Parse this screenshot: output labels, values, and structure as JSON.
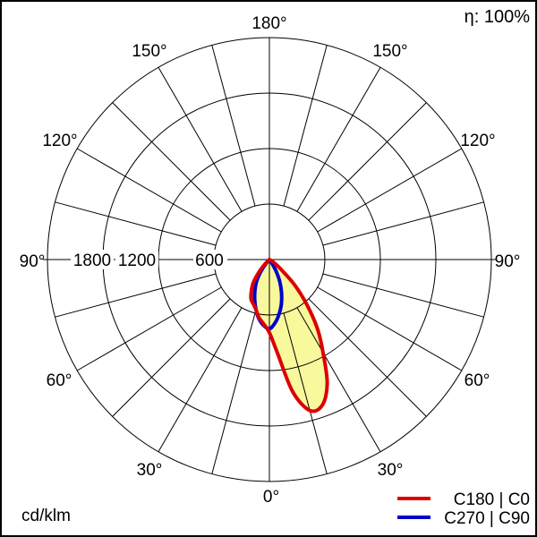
{
  "efficiency": "η: 100%",
  "unit": "cd/klm",
  "legend": {
    "items": [
      {
        "label": "C180 | C0",
        "color": "#dd0000"
      },
      {
        "label": "C270 | C90",
        "color": "#0000cc"
      }
    ]
  },
  "axis": {
    "radial_labels": [
      "1800",
      "1200",
      "600"
    ],
    "angle_labels": [
      "180°",
      "150°",
      "120°",
      "90°",
      "60°",
      "30°",
      "0°"
    ]
  },
  "colors": {
    "curve_c0_c180": "#dd0000",
    "curve_c90_c270": "#0000cc",
    "beam_fill": "#f8f89c",
    "grid": "#000000"
  },
  "chart_data": {
    "type": "polar_intensity",
    "title": "Luminous intensity distribution curve",
    "unit": "cd/klm",
    "efficiency_percent": 100,
    "radial_ticks": [
      600,
      1200,
      1800
    ],
    "radial_max": 2400,
    "angle_tick_labels_deg": [
      0,
      30,
      60,
      90,
      120,
      150,
      180
    ],
    "angle_grid_step_deg": 15,
    "grid": true,
    "legend_position": "bottom-right",
    "series": [
      {
        "name": "C180 | C0",
        "left_plane": "C180",
        "right_plane": "C0",
        "color": "#dd0000",
        "fill": "#f8f89c",
        "gamma_deg": [
          0,
          5,
          10,
          15,
          20,
          25,
          30,
          35,
          40,
          45,
          50,
          55,
          60,
          65
        ],
        "right_values_cd_per_klm": [
          790,
          1020,
          1450,
          1690,
          1675,
          1480,
          1160,
          900,
          620,
          380,
          160,
          70,
          20,
          0
        ],
        "left_values_cd_per_klm": [
          790,
          700,
          640,
          560,
          510,
          470,
          390,
          300,
          170,
          60,
          0,
          0,
          0,
          0
        ],
        "peak": {
          "plane": "C0",
          "gamma_deg": 16,
          "value_cd_per_klm": 1700
        }
      },
      {
        "name": "C270 | C90",
        "left_plane": "C270",
        "right_plane": "C90",
        "color": "#0000cc",
        "fill": null,
        "gamma_deg": [
          0,
          5,
          10,
          15,
          20,
          25,
          30,
          35,
          40,
          45
        ],
        "right_values_cd_per_klm": [
          750,
          690,
          600,
          500,
          385,
          265,
          145,
          40,
          0,
          0
        ],
        "left_values_cd_per_klm": [
          750,
          715,
          650,
          560,
          465,
          370,
          280,
          170,
          60,
          0
        ],
        "peak": {
          "plane": "C90",
          "gamma_deg": 0,
          "value_cd_per_klm": 750
        }
      }
    ]
  }
}
